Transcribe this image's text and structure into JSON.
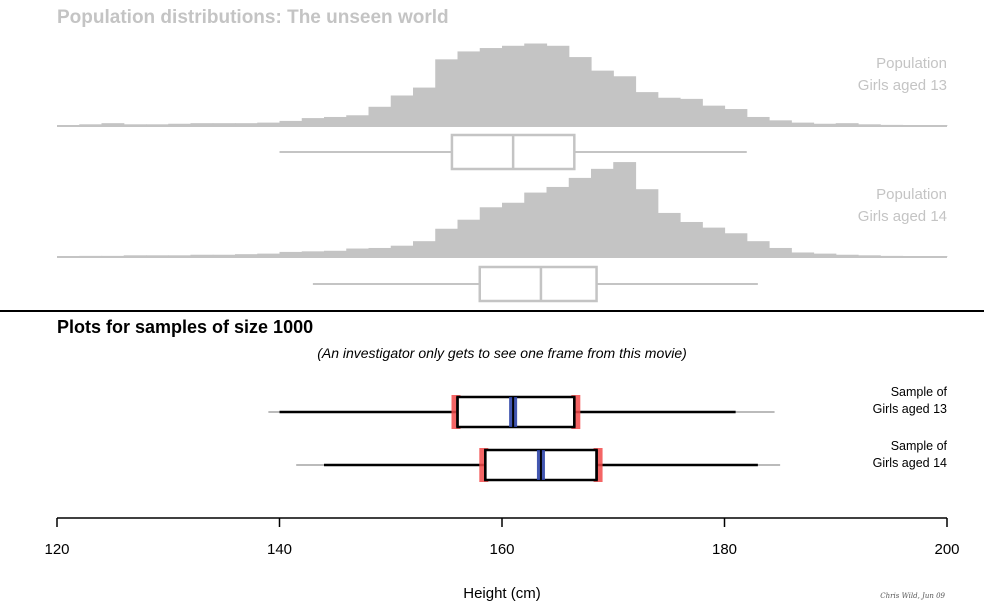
{
  "colors": {
    "population": "#c4c4c4",
    "sample_box": "#000000",
    "quartile_accent": "#f24a4a",
    "median_accent": "#2f45a8",
    "divider": "#000000"
  },
  "population_title": "Population distributions: The unseen world",
  "sample_title": "Plots for samples of size 1000",
  "sample_note": "(An investigator only gets to see one frame from this movie)",
  "signature": "Chris Wild, Jun 09",
  "chart_data": {
    "type": "bar",
    "xlabel": "Height (cm)",
    "xlim": [
      120,
      200
    ],
    "xticks": [
      120,
      140,
      160,
      180,
      200
    ],
    "histogram_bin_width": 2,
    "populations": [
      {
        "label_lines": [
          "Population",
          "Girls aged 13"
        ],
        "histogram": {
          "bin_start": 120,
          "counts": [
            0.5,
            1.5,
            2.5,
            1.5,
            1.5,
            2,
            2.5,
            2.5,
            2.5,
            3,
            4.5,
            7,
            8,
            9.5,
            17,
            27,
            34,
            59,
            66,
            69,
            71,
            73,
            71,
            61,
            49,
            44,
            30,
            25,
            24,
            18,
            15,
            8,
            5,
            3,
            2,
            2.5,
            1.5,
            1,
            0.5,
            0.5
          ]
        },
        "boxplot": {
          "whisker_low": 140,
          "q1": 155.5,
          "median": 161,
          "q3": 166.5,
          "whisker_high": 182
        }
      },
      {
        "label_lines": [
          "Population",
          "Girls aged 14"
        ],
        "histogram": {
          "bin_start": 120,
          "counts": [
            0.5,
            1,
            1,
            1.5,
            1.5,
            1.5,
            2,
            2,
            2.5,
            3,
            4.5,
            5,
            5.5,
            7.5,
            8,
            10,
            14,
            25,
            33,
            44,
            48,
            57,
            62,
            70,
            78,
            84,
            60,
            39,
            31,
            26,
            21,
            14,
            8,
            4,
            3,
            2,
            1.5,
            1,
            0.5,
            0.5
          ]
        },
        "boxplot": {
          "whisker_low": 143,
          "q1": 158,
          "median": 163.5,
          "q3": 168.5,
          "whisker_high": 183
        }
      }
    ],
    "samples": [
      {
        "label_lines": [
          "Sample of",
          "Girls aged 13"
        ],
        "boxplot": {
          "whisker_low": 140,
          "q1": 156,
          "median": 161,
          "q3": 166.5,
          "whisker_high": 181
        },
        "whisker_range_faint": [
          139,
          184.5
        ]
      },
      {
        "label_lines": [
          "Sample of",
          "Girls aged 14"
        ],
        "boxplot": {
          "whisker_low": 144,
          "q1": 158.5,
          "median": 163.5,
          "q3": 168.5,
          "whisker_high": 183
        },
        "whisker_range_faint": [
          141.5,
          185
        ]
      }
    ]
  }
}
